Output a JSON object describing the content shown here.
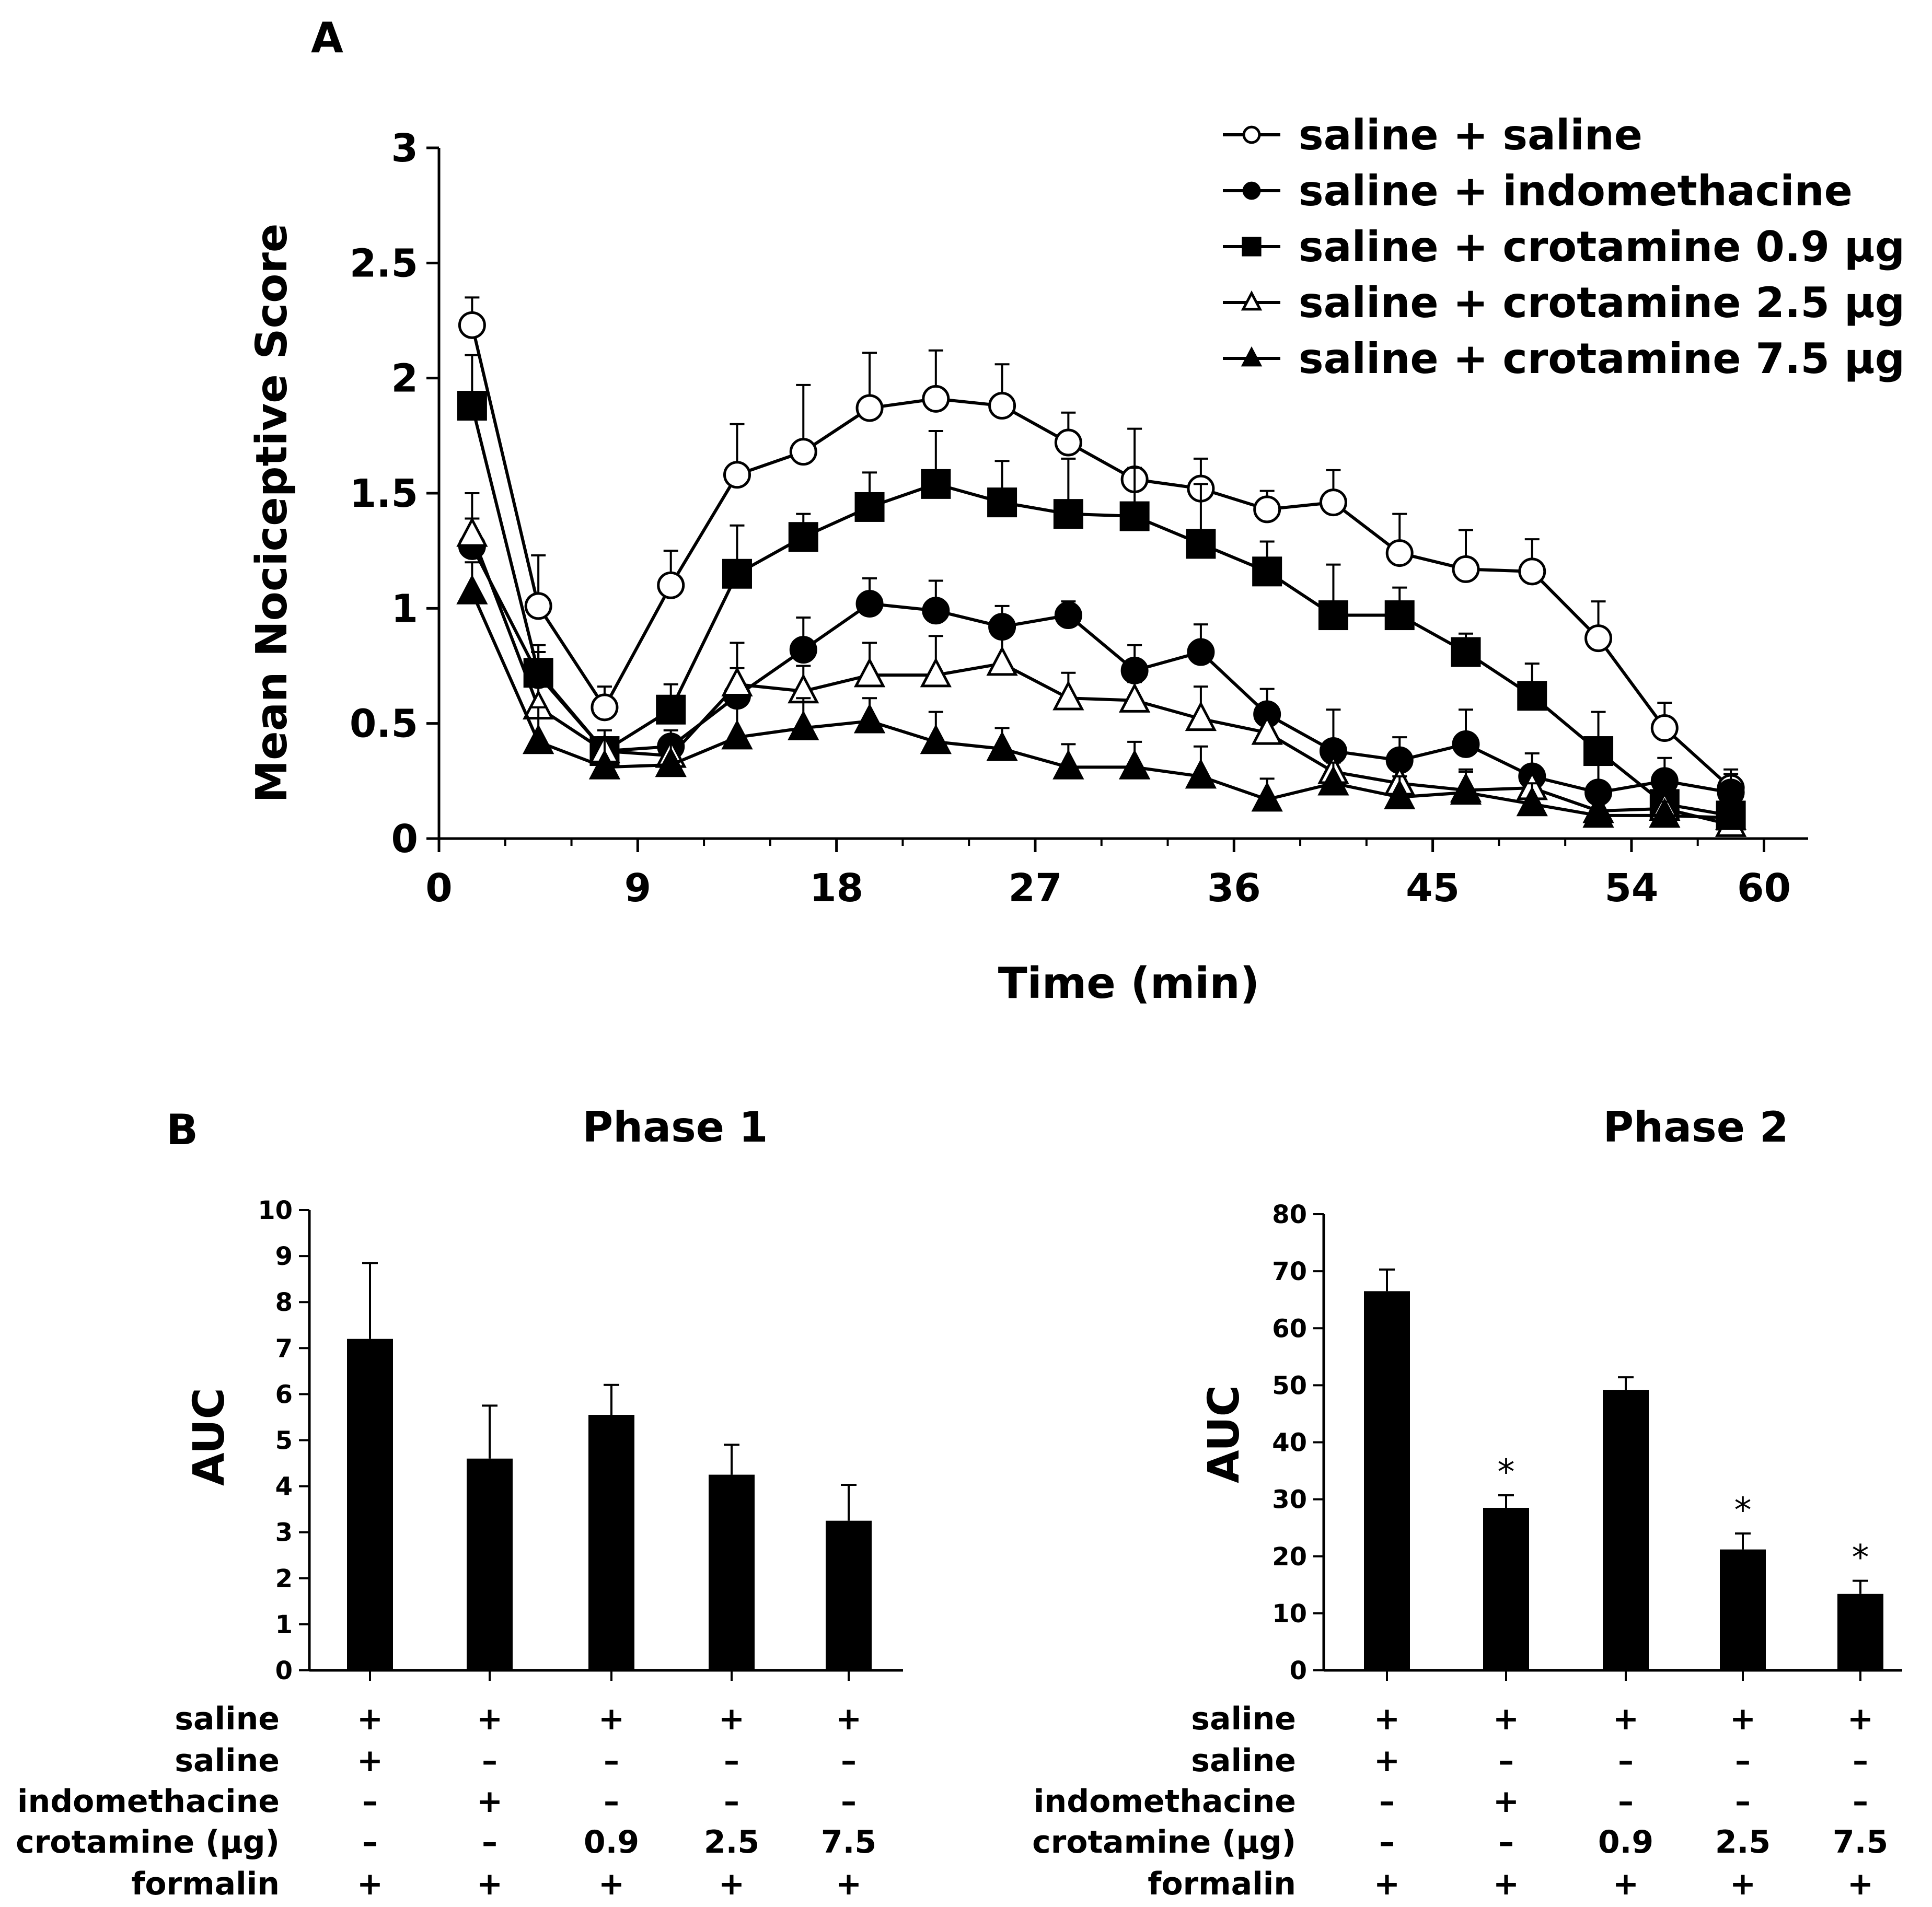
{
  "panel_a": {
    "label": "A",
    "legend": [
      "saline + saline",
      "saline + indomethacine",
      "saline + crotamine 0.9 μg",
      "saline + crotamine 2.5 μg",
      "saline + crotamine 7.5 μg"
    ]
  },
  "panel_b": {
    "label": "B",
    "phase1_title": "Phase 1",
    "phase2_title": "Phase 2",
    "cond_labels": [
      "saline",
      "saline",
      "indomethacine",
      "crotamine (μg)",
      "formalin"
    ],
    "cond_values": [
      [
        "+",
        "+",
        "+",
        "+",
        "+"
      ],
      [
        "+",
        "–",
        "–",
        "–",
        "–"
      ],
      [
        "–",
        "+",
        "–",
        "–",
        "–"
      ],
      [
        "–",
        "–",
        "0.9",
        "2.5",
        "7.5"
      ],
      [
        "+",
        "+",
        "+",
        "+",
        "+"
      ]
    ]
  },
  "chart_data": [
    {
      "type": "line",
      "title": "",
      "xlabel": "Time (min)",
      "ylabel": "Mean Nociceptive Score",
      "xlim": [
        0,
        62
      ],
      "ylim": [
        0,
        3
      ],
      "xticks": [
        0,
        9,
        18,
        27,
        36,
        45,
        54,
        60
      ],
      "yticks": [
        0,
        0.5,
        1,
        1.5,
        2,
        2.5,
        3
      ],
      "ytick_labels": [
        "0",
        "0.5",
        "1",
        "1.5",
        "2",
        "2.5",
        "3"
      ],
      "x": [
        1.5,
        4.5,
        7.5,
        10.5,
        13.5,
        16.5,
        19.5,
        22.5,
        25.5,
        28.5,
        31.5,
        34.5,
        37.5,
        40.5,
        43.5,
        46.5,
        49.5,
        52.5,
        55.5,
        58.5
      ],
      "series": [
        {
          "name": "saline + saline",
          "marker": "circle-open",
          "values": [
            2.23,
            1.01,
            0.57,
            1.1,
            1.58,
            1.68,
            1.87,
            1.91,
            1.88,
            1.72,
            1.56,
            1.52,
            1.43,
            1.46,
            1.24,
            1.17,
            1.16,
            0.87,
            0.48,
            0.22
          ],
          "errors": [
            0.12,
            0.22,
            0.09,
            0.15,
            0.22,
            0.29,
            0.24,
            0.21,
            0.18,
            0.13,
            0.22,
            0.13,
            0.08,
            0.14,
            0.17,
            0.17,
            0.14,
            0.16,
            0.11,
            0.08
          ]
        },
        {
          "name": "saline + indomethacine",
          "marker": "circle-filled",
          "values": [
            1.27,
            0.71,
            0.38,
            0.4,
            0.62,
            0.82,
            1.02,
            0.99,
            0.92,
            0.97,
            0.73,
            0.81,
            0.54,
            0.38,
            0.34,
            0.41,
            0.27,
            0.2,
            0.25,
            0.2
          ],
          "errors": [
            0.12,
            0.1,
            0.06,
            0.07,
            0.12,
            0.14,
            0.11,
            0.13,
            0.09,
            0.06,
            0.11,
            0.12,
            0.11,
            0.18,
            0.1,
            0.15,
            0.1,
            0.17,
            0.1,
            0.08
          ]
        },
        {
          "name": "saline + crotamine 0.9 μg",
          "marker": "square-filled",
          "values": [
            1.88,
            0.72,
            0.38,
            0.56,
            1.15,
            1.31,
            1.44,
            1.54,
            1.46,
            1.41,
            1.4,
            1.28,
            1.16,
            0.97,
            0.97,
            0.81,
            0.62,
            0.38,
            0.15,
            0.1
          ],
          "errors": [
            0.22,
            0.12,
            0.06,
            0.11,
            0.21,
            0.1,
            0.15,
            0.23,
            0.18,
            0.24,
            0.21,
            0.26,
            0.13,
            0.22,
            0.12,
            0.08,
            0.14,
            0.17,
            0.08,
            0.07
          ]
        },
        {
          "name": "saline + crotamine 2.5 μg",
          "marker": "triangle-open",
          "values": [
            1.32,
            0.57,
            0.38,
            0.36,
            0.67,
            0.64,
            0.71,
            0.71,
            0.76,
            0.61,
            0.6,
            0.52,
            0.46,
            0.29,
            0.24,
            0.21,
            0.22,
            0.12,
            0.13,
            0.06
          ],
          "errors": [
            0.18,
            0.12,
            0.06,
            0.08,
            0.18,
            0.11,
            0.14,
            0.17,
            0.12,
            0.11,
            0.08,
            0.14,
            0.12,
            0.11,
            0.09,
            0.09,
            0.07,
            0.06,
            0.07,
            0.05
          ]
        },
        {
          "name": "saline + crotamine 7.5 μg",
          "marker": "triangle-filled",
          "values": [
            1.07,
            0.42,
            0.31,
            0.32,
            0.44,
            0.48,
            0.51,
            0.42,
            0.39,
            0.31,
            0.31,
            0.27,
            0.17,
            0.24,
            0.18,
            0.2,
            0.15,
            0.1,
            0.1,
            0.09
          ],
          "errors": [
            0.13,
            0.15,
            0.16,
            0.12,
            0.17,
            0.13,
            0.1,
            0.13,
            0.09,
            0.1,
            0.11,
            0.13,
            0.09,
            0.09,
            0.09,
            0.09,
            0.09,
            0.06,
            0.06,
            0.05
          ]
        }
      ]
    },
    {
      "type": "bar",
      "title": "Phase 1",
      "xlabel": "",
      "ylabel": "AUC",
      "ylim": [
        0,
        10
      ],
      "yticks": [
        0,
        1,
        2,
        3,
        4,
        5,
        6,
        7,
        8,
        9,
        10
      ],
      "categories": [
        "saline + saline",
        "saline + indomethacine",
        "saline + crotamine 0.9 μg",
        "saline + crotamine 2.5 μg",
        "saline + crotamine 7.5 μg"
      ],
      "values": [
        7.2,
        4.6,
        5.55,
        4.25,
        3.25
      ],
      "errors": [
        1.65,
        1.15,
        0.65,
        0.65,
        0.78
      ],
      "significance": [
        "",
        "",
        "",
        "",
        ""
      ]
    },
    {
      "type": "bar",
      "title": "Phase 2",
      "xlabel": "",
      "ylabel": "AUC",
      "ylim": [
        0,
        80
      ],
      "yticks": [
        0,
        10,
        20,
        30,
        40,
        50,
        60,
        70,
        80
      ],
      "categories": [
        "saline + saline",
        "saline + indomethacine",
        "saline + crotamine 0.9 μg",
        "saline + crotamine 2.5 μg",
        "saline + crotamine 7.5 μg"
      ],
      "values": [
        66.5,
        28.5,
        49.2,
        21.2,
        13.4
      ],
      "errors": [
        3.8,
        2.2,
        2.2,
        2.8,
        2.3
      ],
      "significance": [
        "",
        "*",
        "",
        "*",
        "*"
      ]
    }
  ]
}
